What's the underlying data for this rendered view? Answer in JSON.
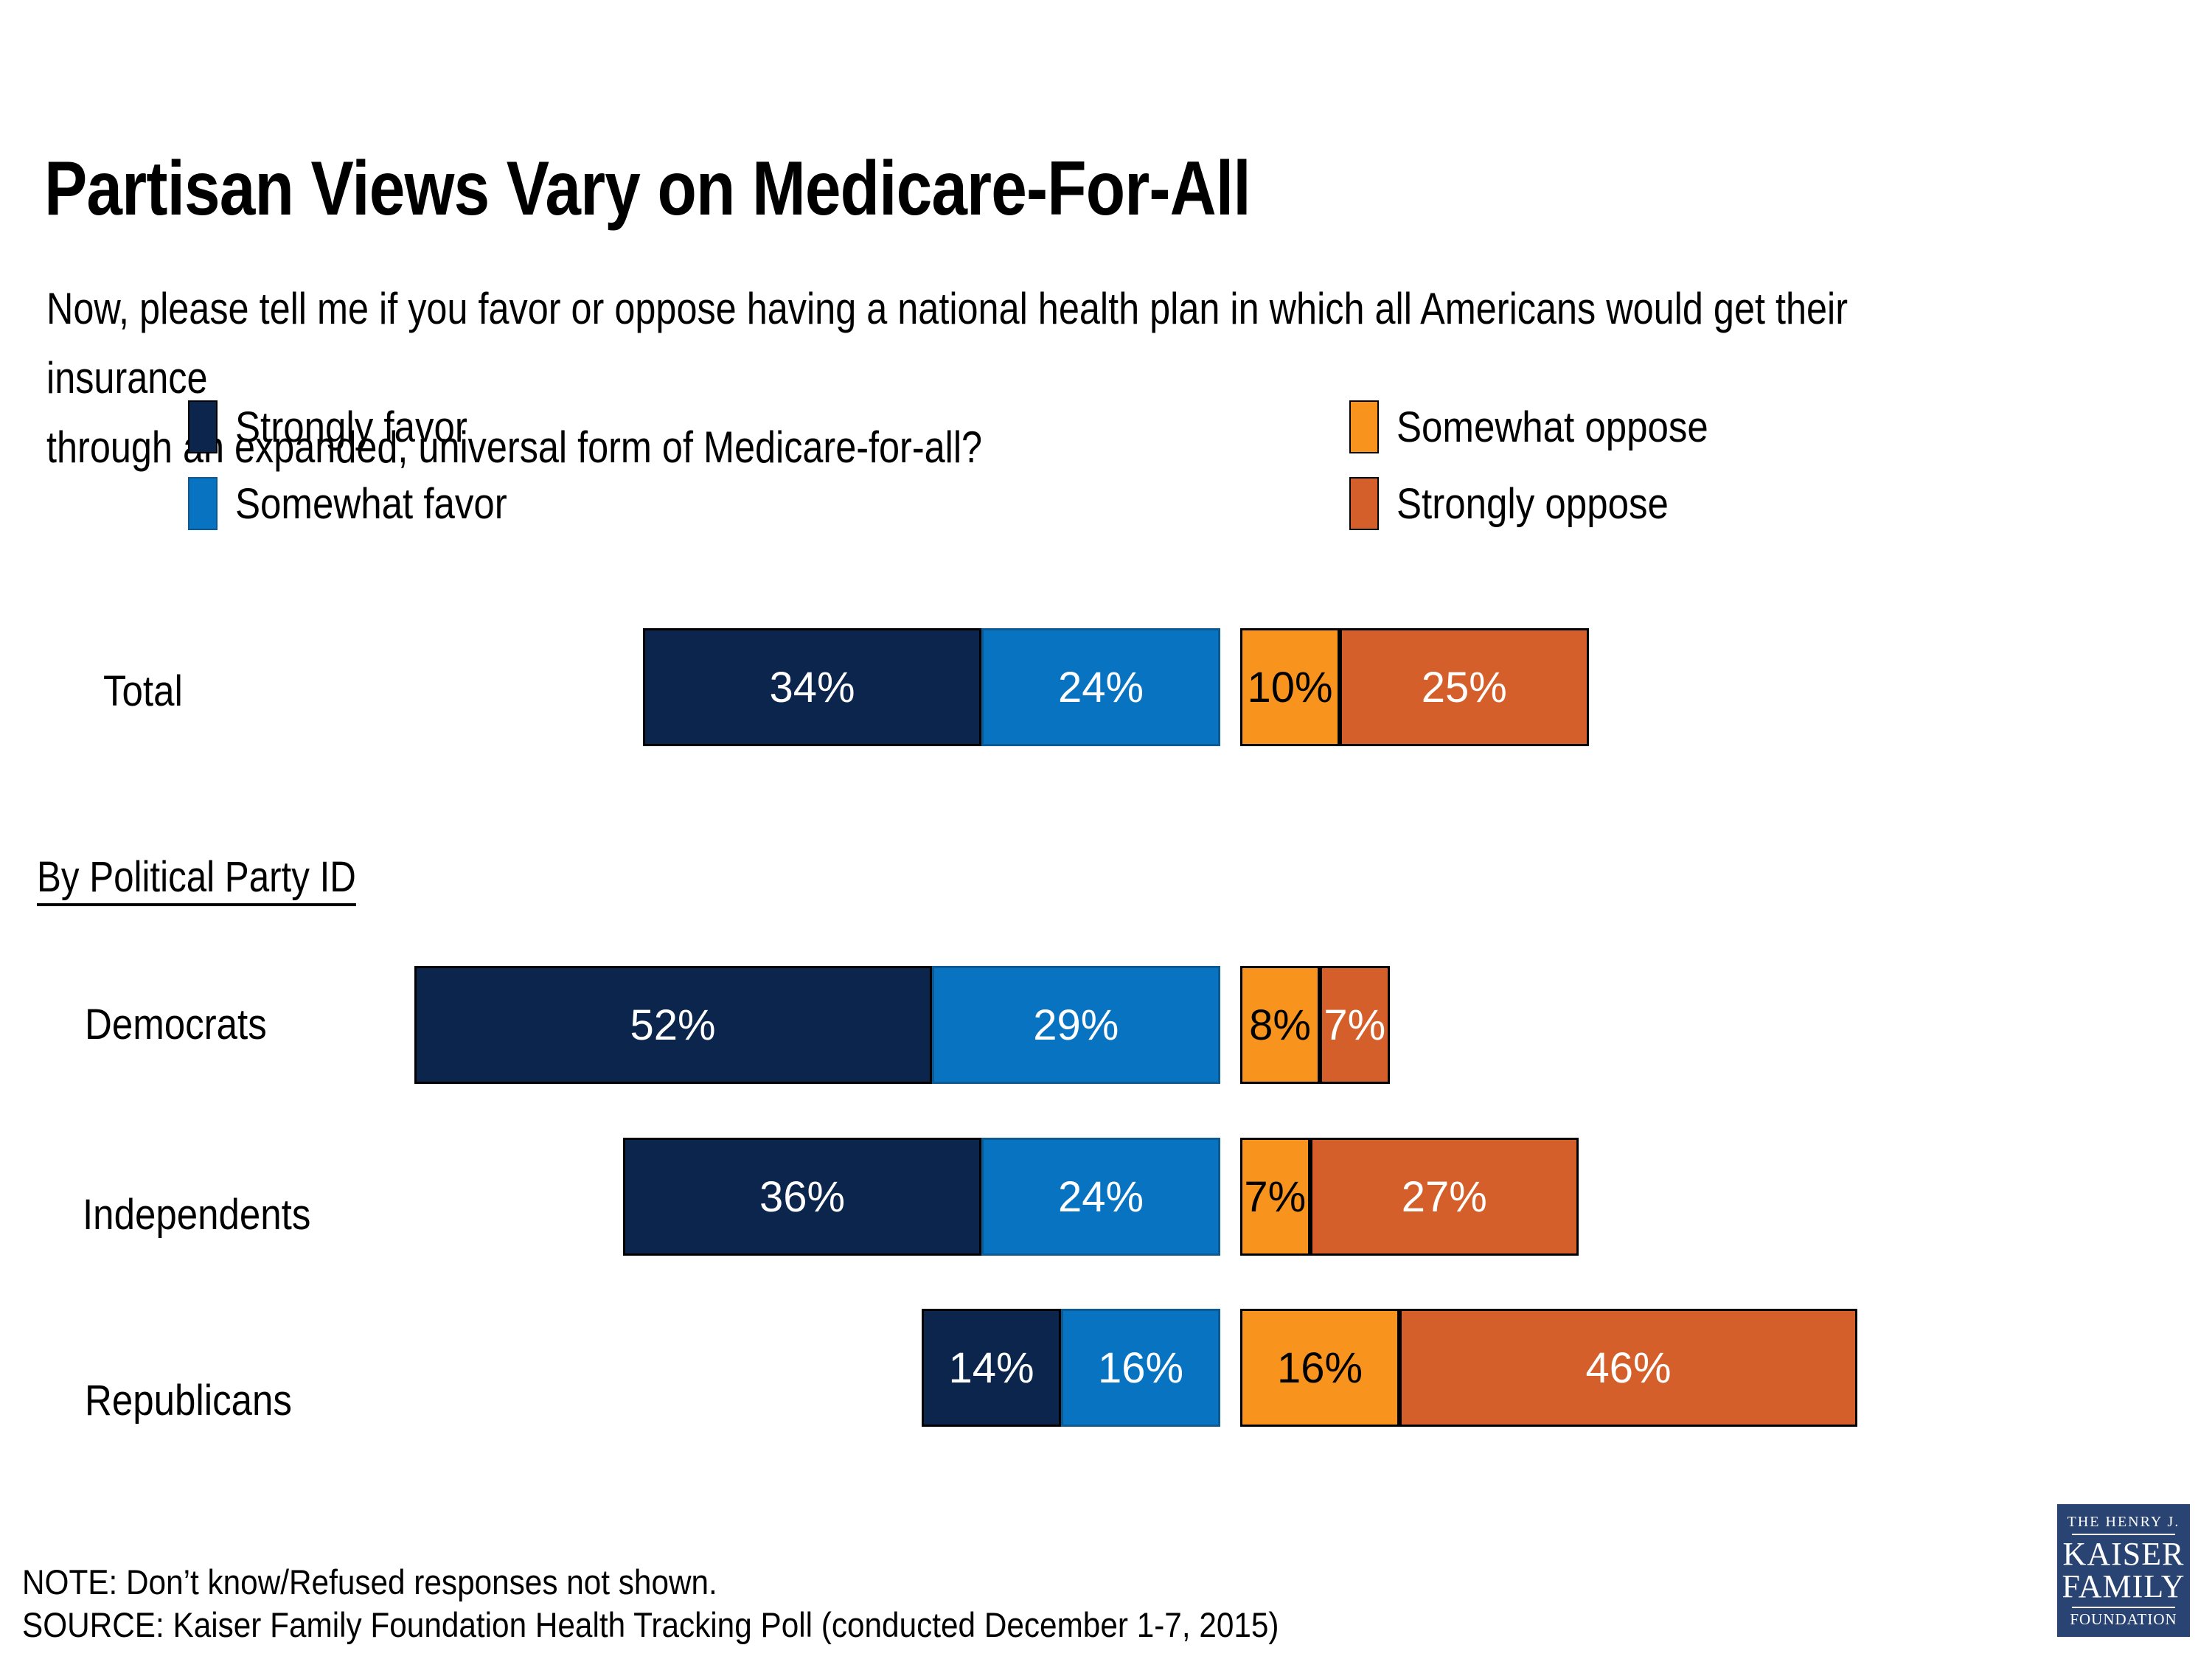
{
  "title": "Partisan Views Vary on Medicare-For-All",
  "question": "Now, please tell me if you favor or oppose having a national health plan in which all Americans would get their insurance\nthrough an expanded, universal form of Medicare-for-all?",
  "section_heading": "By Political Party ID",
  "note": "NOTE: Don’t know/Refused responses not shown.",
  "source": "SOURCE: Kaiser Family Foundation Health Tracking Poll (conducted December 1-7, 2015)",
  "logo": {
    "line1": "THE HENRY J.",
    "line2": "KAISER",
    "line3": "FAMILY",
    "line4": "FOUNDATION"
  },
  "chart_data": {
    "type": "bar",
    "orientation": "horizontal-stacked-diverging",
    "unit": "%",
    "categories": [
      "Total",
      "Democrats",
      "Independents",
      "Republicans"
    ],
    "series": [
      {
        "name": "Strongly favor",
        "key": "strongly_favor",
        "color": "#0b254c",
        "label_color": "#ffffff",
        "values": [
          34,
          52,
          36,
          14
        ]
      },
      {
        "name": "Somewhat favor",
        "key": "somewhat_favor",
        "color": "#0773c1",
        "border_color": "#0b5a94",
        "label_color": "#ffffff",
        "values": [
          24,
          29,
          24,
          16
        ]
      },
      {
        "name": "Somewhat oppose",
        "key": "somewhat_oppose",
        "color": "#f8941d",
        "label_color": "#000000",
        "values": [
          10,
          8,
          7,
          16
        ]
      },
      {
        "name": "Strongly oppose",
        "key": "strongly_oppose",
        "color": "#d45f2a",
        "label_color": "#ffffff",
        "values": [
          25,
          7,
          27,
          46
        ]
      }
    ],
    "legend_position": "top, two columns (favor left, oppose right)",
    "grid": false,
    "value_labels": "inside segments"
  }
}
